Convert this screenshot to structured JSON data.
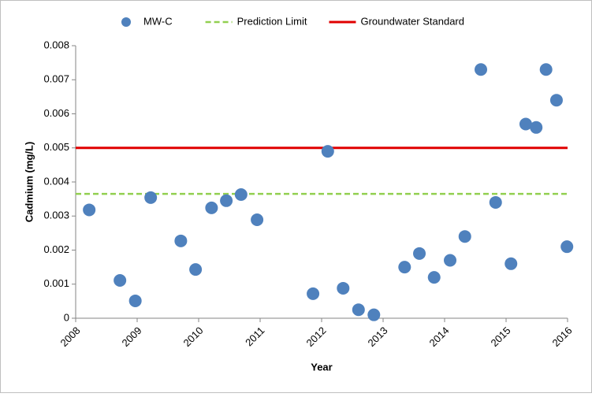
{
  "chart_data": {
    "type": "scatter",
    "x_label": "Year",
    "y_label": "Cadmium (mg/L)",
    "xlim": [
      2008,
      2016
    ],
    "xticks": [
      2008,
      2009,
      2010,
      2011,
      2012,
      2013,
      2014,
      2015,
      2016
    ],
    "ylim": [
      0,
      0.008
    ],
    "yticks": [
      0,
      0.001,
      0.002,
      0.003,
      0.004,
      0.005,
      0.006,
      0.007,
      0.008
    ],
    "grid": false,
    "legend": "top",
    "series": [
      {
        "name": "MW-C",
        "color": "#4f81bd",
        "x": [
          2008.22,
          2008.72,
          2008.97,
          2009.22,
          2009.71,
          2009.95,
          2010.21,
          2010.45,
          2010.69,
          2010.95,
          2011.86,
          2012.1,
          2012.35,
          2012.6,
          2012.85,
          2013.35,
          2013.59,
          2013.83,
          2014.09,
          2014.33,
          2014.59,
          2014.83,
          2015.08,
          2015.32,
          2015.49,
          2015.65,
          2015.82,
          2015.99
        ],
        "values": [
          0.00318,
          0.00111,
          0.00051,
          0.00354,
          0.00227,
          0.00143,
          0.00324,
          0.00345,
          0.00363,
          0.00289,
          0.00072,
          0.0049,
          0.00088,
          0.00025,
          0.0001,
          0.0015,
          0.0019,
          0.0012,
          0.0017,
          0.0024,
          0.0073,
          0.0034,
          0.0016,
          0.0057,
          0.0056,
          0.0073,
          0.0064,
          0.0021
        ]
      }
    ],
    "reference_lines": [
      {
        "name": "Prediction Limit",
        "color": "#92d050",
        "style": "dashed",
        "value": 0.00365
      },
      {
        "name": "Groundwater Standard",
        "color": "#e00000",
        "style": "solid",
        "value": 0.005
      }
    ]
  }
}
